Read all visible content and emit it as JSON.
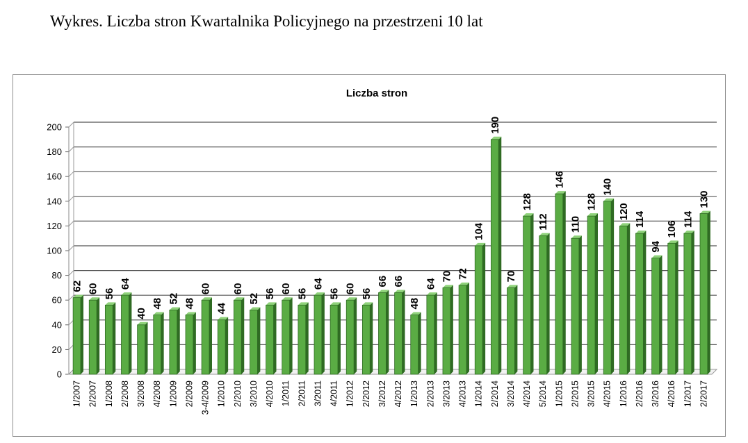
{
  "document": {
    "caption": "Wykres. Liczba stron Kwartalnika Policyjnego na przestrzeni 10 lat"
  },
  "colors": {
    "bar_fill": "#5aac44",
    "bar_dark": "#2f6b23",
    "bar_light": "#8fd27a",
    "gridline": "#555555",
    "frame": "#8c8c8c"
  },
  "chart_data": {
    "type": "bar",
    "title": "Liczba stron",
    "xlabel": "",
    "ylabel": "",
    "ylim": [
      0,
      200
    ],
    "yticks": [
      0,
      20,
      40,
      60,
      80,
      100,
      120,
      140,
      160,
      180,
      200
    ],
    "grid": true,
    "legend": "none",
    "style": "3d-column",
    "categories": [
      "1/2007",
      "2/2007",
      "1/2008",
      "2/2008",
      "3/2008",
      "4/2008",
      "1/2009",
      "2/2009",
      "3-4/2009",
      "1/2010",
      "2/2010",
      "3/2010",
      "4/2010",
      "1/2011",
      "2/2011",
      "3/2011",
      "4/2011",
      "1/2012",
      "2/2012",
      "3/2012",
      "4/2012",
      "1/2013",
      "2/2013",
      "3/2013",
      "4/2013",
      "1/2014",
      "2/2014",
      "3/2014",
      "4/2014",
      "5/2014",
      "1/2015",
      "2/2015",
      "3/2015",
      "4/2015",
      "1/2016",
      "2/2016",
      "3/2016",
      "4/2016",
      "1/2017",
      "2/2017"
    ],
    "values": [
      62,
      60,
      56,
      64,
      40,
      48,
      52,
      48,
      60,
      44,
      60,
      52,
      56,
      60,
      56,
      64,
      56,
      60,
      56,
      66,
      66,
      48,
      64,
      70,
      72,
      104,
      190,
      70,
      128,
      112,
      146,
      110,
      128,
      140,
      120,
      114,
      94,
      106,
      114,
      130
    ],
    "data_labels": true
  }
}
